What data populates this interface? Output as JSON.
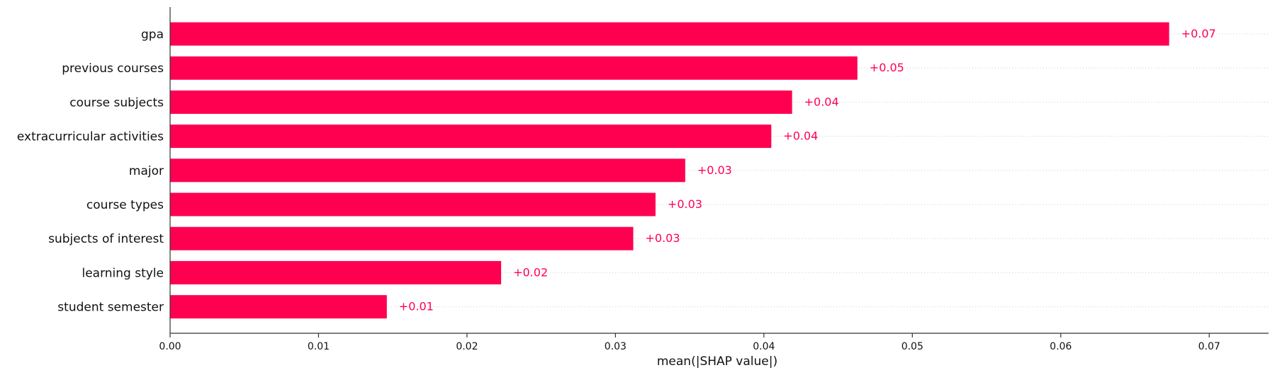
{
  "chart_data": {
    "type": "bar",
    "orientation": "horizontal",
    "title": "",
    "xlabel": "mean(|SHAP value|)",
    "ylabel": "",
    "xlim": [
      0,
      0.074
    ],
    "grid": false,
    "legend": "none",
    "colors": {
      "bar": "#ff0051",
      "value_label": "#ff0051",
      "axis": "#333333",
      "text": "#111111",
      "guide_line": "#cccccc"
    },
    "categories": [
      "gpa",
      "previous courses",
      "course subjects",
      "extracurricular activities",
      "major",
      "course types",
      "subjects of interest",
      "learning style",
      "student semester"
    ],
    "values": [
      0.0673,
      0.0463,
      0.0419,
      0.0405,
      0.0347,
      0.0327,
      0.0312,
      0.0223,
      0.0146
    ],
    "value_labels": [
      "+0.07",
      "+0.05",
      "+0.04",
      "+0.04",
      "+0.03",
      "+0.03",
      "+0.03",
      "+0.02",
      "+0.01"
    ],
    "xticks": [
      0.0,
      0.01,
      0.02,
      0.03,
      0.04,
      0.05,
      0.06,
      0.07
    ],
    "xtick_labels": [
      "0.00",
      "0.01",
      "0.02",
      "0.03",
      "0.04",
      "0.05",
      "0.06",
      "0.07"
    ]
  }
}
